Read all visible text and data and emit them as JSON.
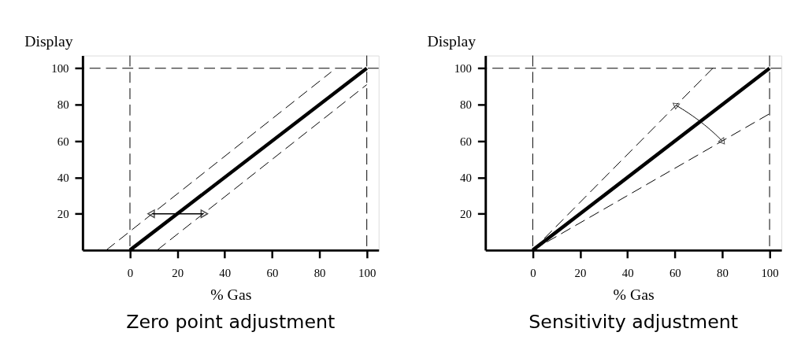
{
  "chart_data": [
    {
      "type": "line",
      "title": "Zero point adjustment",
      "xlabel": "% Gas",
      "ylabel": "Display",
      "xlim": [
        -20,
        105
      ],
      "ylim": [
        0,
        107
      ],
      "xticks": [
        0,
        20,
        40,
        60,
        80,
        100
      ],
      "yticks": [
        20,
        40,
        60,
        80,
        100
      ],
      "grid": false,
      "ref_lines": [
        {
          "axis": "x",
          "value": 0,
          "line_style": "dashed",
          "color": "#000000"
        },
        {
          "axis": "x",
          "value": 100,
          "line_style": "dashed",
          "color": "#000000"
        },
        {
          "axis": "y",
          "value": 100,
          "line_style": "dashed",
          "color": "#000000"
        }
      ],
      "series": [
        {
          "color": "#000000",
          "line_style": "solid",
          "x": [
            0,
            100
          ],
          "values": [
            0,
            100
          ]
        },
        {
          "color": "#000000",
          "line_style": "dashed",
          "x": [
            -10,
            85
          ],
          "values": [
            0,
            98
          ]
        },
        {
          "color": "#000000",
          "line_style": "dashed",
          "x": [
            11.5,
            100
          ],
          "values": [
            0,
            91
          ]
        }
      ]
    },
    {
      "type": "line",
      "title": "Sensitivity adjustment",
      "xlabel": "% Gas",
      "ylabel": "Display",
      "xlim": [
        -20,
        105
      ],
      "ylim": [
        0,
        107
      ],
      "xticks": [
        0,
        20,
        40,
        60,
        80,
        100
      ],
      "yticks": [
        20,
        40,
        60,
        80,
        100
      ],
      "grid": false,
      "ref_lines": [
        {
          "axis": "x",
          "value": 0,
          "line_style": "dashed",
          "color": "#000000"
        },
        {
          "axis": "x",
          "value": 100,
          "line_style": "dashed",
          "color": "#000000"
        },
        {
          "axis": "y",
          "value": 100,
          "line_style": "dashed",
          "color": "#000000"
        }
      ],
      "series": [
        {
          "color": "#000000",
          "line_style": "solid",
          "x": [
            0,
            100
          ],
          "values": [
            0,
            100
          ]
        },
        {
          "color": "#000000",
          "line_style": "dashed",
          "x": [
            0,
            76
          ],
          "values": [
            0,
            100
          ]
        },
        {
          "color": "#000000",
          "line_style": "dashed",
          "x": [
            0,
            100
          ],
          "values": [
            0,
            75
          ]
        }
      ]
    }
  ]
}
